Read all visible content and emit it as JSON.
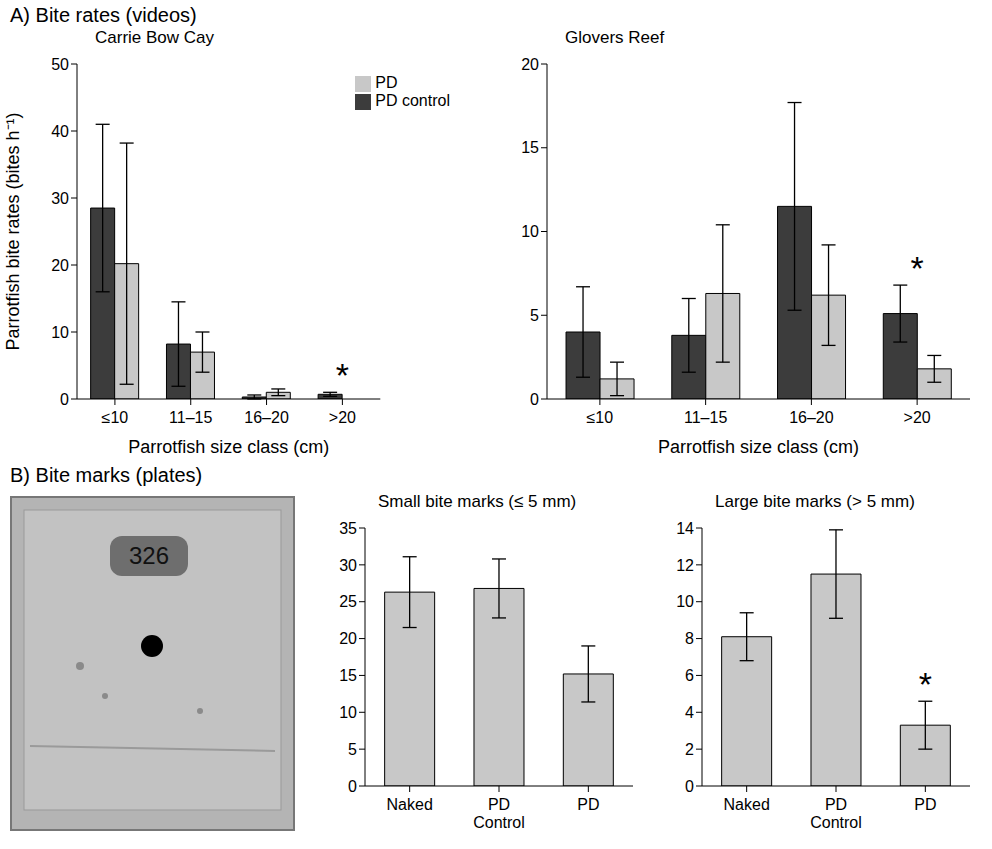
{
  "sections": [
    {
      "label": "A) Bite rates (videos)"
    },
    {
      "label": "B) Bite marks (plates)",
      "photo_label": "326"
    }
  ],
  "chart_data": [
    {
      "type": "bar",
      "title": "Carrie Bow Cay",
      "y_label": "Parrotfish bite rates (bites h⁻¹)",
      "x_label": "Parrotfish size class (cm)",
      "categories": [
        "≤10",
        "11–15",
        "16–20",
        ">20"
      ],
      "series": [
        {
          "name": "PD control",
          "color": "#3c3c3c",
          "values": [
            28.5,
            8.2,
            0.3,
            0.7
          ],
          "errors": [
            12.5,
            6.3,
            0.3,
            0.3
          ]
        },
        {
          "name": "PD",
          "color": "#c8c8c8",
          "values": [
            20.2,
            7.0,
            1.0,
            0
          ],
          "errors": [
            18.0,
            3.0,
            0.5,
            0
          ]
        }
      ],
      "ylim": [
        0,
        50
      ],
      "yticks": [
        0,
        10,
        20,
        30,
        40,
        50
      ],
      "legend": "top right",
      "annotations": [
        {
          "category": ">20",
          "text": "*"
        }
      ]
    },
    {
      "type": "bar",
      "title": "Glovers Reef",
      "x_label": "Parrotfish size class (cm)",
      "categories": [
        "≤10",
        "11–15",
        "16–20",
        ">20"
      ],
      "series": [
        {
          "name": "PD control",
          "color": "#3c3c3c",
          "values": [
            4.0,
            3.8,
            11.5,
            5.1
          ],
          "errors": [
            2.7,
            2.2,
            6.2,
            1.7
          ]
        },
        {
          "name": "PD",
          "color": "#c8c8c8",
          "values": [
            1.2,
            6.3,
            6.2,
            1.8
          ],
          "errors": [
            1.0,
            4.1,
            3.0,
            0.8
          ]
        }
      ],
      "ylim": [
        0,
        20
      ],
      "yticks": [
        0,
        5,
        10,
        15,
        20
      ],
      "annotations": [
        {
          "category": ">20",
          "text": "*"
        }
      ]
    },
    {
      "type": "bar",
      "title": "Small bite marks (≤ 5 mm)",
      "categories": [
        "Naked",
        "PD Control",
        "PD"
      ],
      "values": [
        26.3,
        26.8,
        15.2
      ],
      "errors": [
        4.8,
        4.0,
        3.8
      ],
      "color": "#c8c8c8",
      "ylim": [
        0,
        35
      ],
      "yticks": [
        0,
        5,
        10,
        15,
        20,
        25,
        30,
        35
      ]
    },
    {
      "type": "bar",
      "title": "Large bite marks (> 5 mm)",
      "categories": [
        "Naked",
        "PD Control",
        "PD"
      ],
      "values": [
        8.1,
        11.5,
        3.3
      ],
      "errors": [
        1.3,
        2.4,
        1.3
      ],
      "color": "#c8c8c8",
      "ylim": [
        0,
        14
      ],
      "yticks": [
        0,
        2,
        4,
        6,
        8,
        10,
        12,
        14
      ],
      "annotations": [
        {
          "category": "PD",
          "text": "*"
        }
      ]
    }
  ]
}
